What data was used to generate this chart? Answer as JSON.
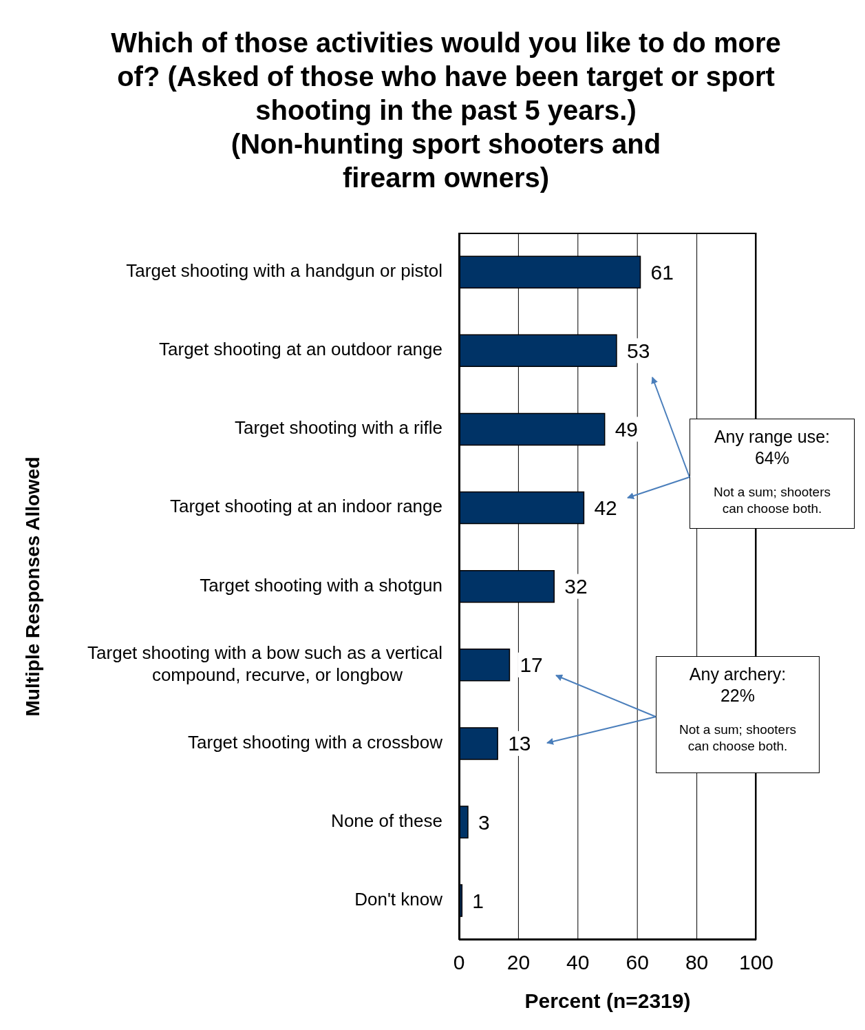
{
  "chart_data": {
    "type": "bar",
    "orientation": "horizontal",
    "title": "Which of those activities would you like to do more of? (Asked of those who have been target or sport shooting in the past 5 years.) (Non-hunting sport shooters and firearm owners)",
    "xlabel": "Percent (n=2319)",
    "ylabel": "Multiple Responses Allowed",
    "categories": [
      "Target shooting with a handgun or pistol",
      "Target shooting at an outdoor range",
      "Target shooting with a rifle",
      "Target shooting at an indoor range",
      "Target shooting with a shotgun",
      "Target shooting with a bow such as a vertical compound, recurve, or longbow",
      "Target shooting with a crossbow",
      "None of these",
      "Don't know"
    ],
    "values": [
      61,
      53,
      49,
      42,
      32,
      17,
      13,
      3,
      1
    ],
    "color": "#003366",
    "data_labels": true,
    "xlim": [
      0,
      100
    ],
    "xticks": [
      0,
      20,
      40,
      60,
      80,
      100
    ],
    "grid": "x",
    "annotations": [
      "Any range use: 64%",
      "Not a sum; shooters can choose both.",
      "Any archery: 22%",
      "Not a sum; shooters can choose both."
    ]
  }
}
